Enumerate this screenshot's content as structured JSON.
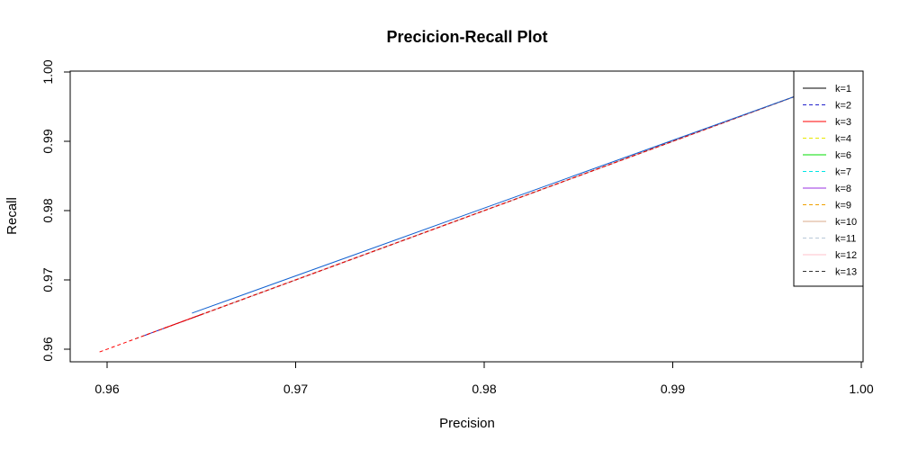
{
  "chart_data": {
    "type": "line",
    "title": "Precicion-Recall Plot",
    "xlabel": "Precision",
    "ylabel": "Recall",
    "xlim": [
      0.958,
      1.0
    ],
    "ylim": [
      0.958,
      1.0
    ],
    "x_ticks": [
      "0.96",
      "0.97",
      "0.98",
      "0.99",
      "1.00"
    ],
    "y_ticks": [
      "0.96",
      "0.97",
      "0.98",
      "0.99",
      "1.00"
    ],
    "grid": false,
    "legend_position": "top-right",
    "series": [
      {
        "name": "k=1",
        "color": "#000000",
        "dash": "solid",
        "x": [
          0.9645,
          0.9966
        ],
        "y": [
          0.9645,
          0.9966
        ]
      },
      {
        "name": "k=2",
        "color": "#2222cc",
        "dash": "dashed",
        "x": [
          0.962,
          0.9966
        ],
        "y": [
          0.962,
          0.9966
        ]
      },
      {
        "name": "k=3",
        "color": "#ff0000",
        "dash": "solid",
        "x": [
          0.963,
          0.9966
        ],
        "y": [
          0.963,
          0.9966
        ]
      },
      {
        "name": "k=4",
        "color": "#e8e800",
        "dash": "dashed",
        "x": [
          0.965,
          0.9966
        ],
        "y": [
          0.965,
          0.9966
        ]
      },
      {
        "name": "k=6",
        "color": "#00dd00",
        "dash": "solid",
        "x": [
          0.965,
          0.9966
        ],
        "y": [
          0.965,
          0.9966
        ]
      },
      {
        "name": "k=7",
        "color": "#00e5e5",
        "dash": "dashed",
        "x": [
          0.965,
          0.9966
        ],
        "y": [
          0.965,
          0.9966
        ]
      },
      {
        "name": "k=8",
        "color": "#9a30e0",
        "dash": "solid",
        "x": [
          0.965,
          0.9966
        ],
        "y": [
          0.965,
          0.9966
        ]
      },
      {
        "name": "k=9",
        "color": "#f0a000",
        "dash": "dashed",
        "x": [
          0.965,
          0.9966
        ],
        "y": [
          0.965,
          0.9966
        ]
      },
      {
        "name": "k=10",
        "color": "#d8a888",
        "dash": "solid",
        "x": [
          0.965,
          0.9966
        ],
        "y": [
          0.965,
          0.9966
        ]
      },
      {
        "name": "k=11",
        "color": "#b8c8d8",
        "dash": "dashed",
        "x": [
          0.965,
          0.9966
        ],
        "y": [
          0.965,
          0.9966
        ]
      },
      {
        "name": "k=12",
        "color": "#ffc0cb",
        "dash": "solid",
        "x": [
          0.965,
          0.9966
        ],
        "y": [
          0.965,
          0.9966
        ]
      },
      {
        "name": "k=13",
        "color": "#333333",
        "dash": "dashed",
        "x": [
          0.9615,
          0.9966
        ],
        "y": [
          0.9615,
          0.9966
        ]
      },
      {
        "name": "",
        "color": "#ff0000",
        "dash": "dashed",
        "x": [
          0.9596,
          0.9966
        ],
        "y": [
          0.9596,
          0.9966
        ]
      },
      {
        "name": "",
        "color": "#1060d0",
        "dash": "solid",
        "x": [
          0.9645,
          0.9966
        ],
        "y": [
          0.9652,
          0.9966
        ]
      }
    ]
  }
}
